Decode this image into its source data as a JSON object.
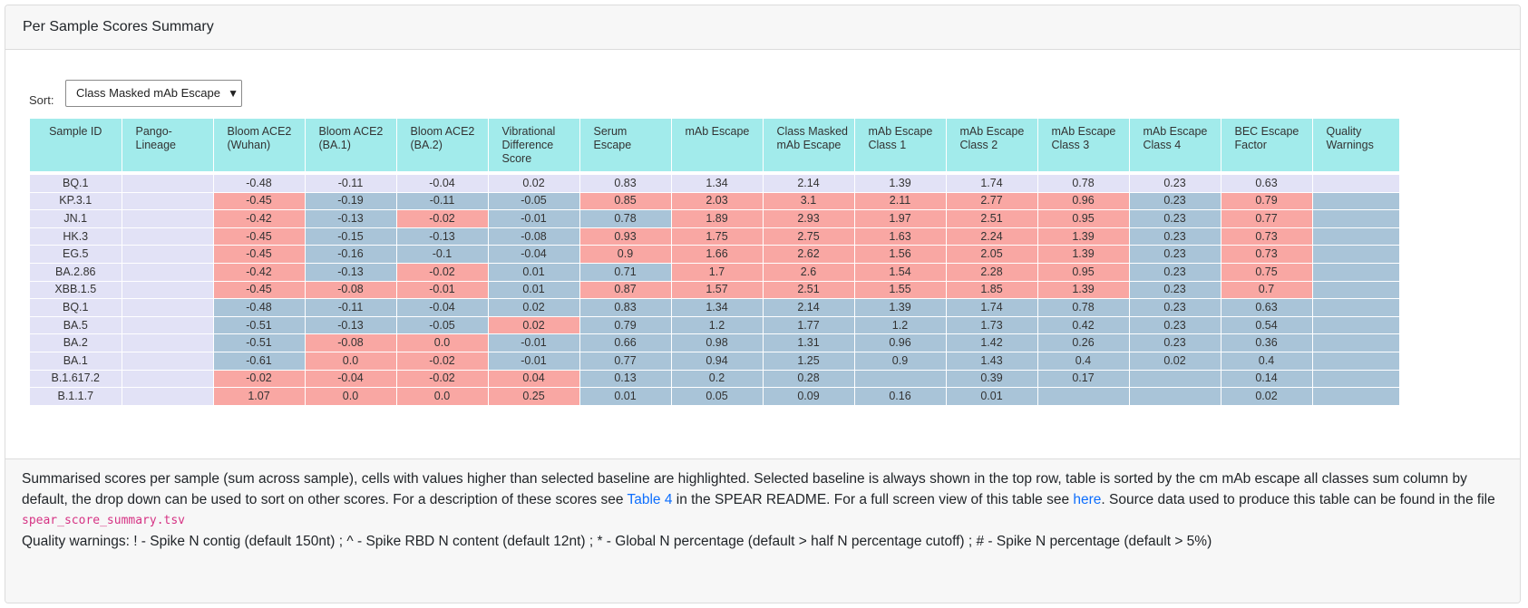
{
  "card": {
    "title": "Per Sample Scores Summary"
  },
  "sort": {
    "label": "Sort:",
    "selected": "Class Masked mAb Escape",
    "arrow": "▼"
  },
  "table": {
    "headers": [
      "Sample ID",
      "Pango-Lineage",
      "Bloom ACE2 (Wuhan)",
      "Bloom ACE2 (BA.1)",
      "Bloom ACE2 (BA.2)",
      "Vibrational Difference Score",
      "Serum Escape",
      "mAb Escape",
      "Class Masked mAb Escape",
      "mAb Escape Class 1",
      "mAb Escape Class 2",
      "mAb Escape Class 3",
      "mAb Escape Class 4",
      "BEC Escape Factor",
      "Quality Warnings"
    ],
    "rows": [
      {
        "id": "BQ.1",
        "lineage": "",
        "values": [
          "-0.48",
          "-0.11",
          "-0.04",
          "0.02",
          "0.83",
          "1.34",
          "2.14",
          "1.39",
          "1.74",
          "0.78",
          "0.23",
          "0.63",
          ""
        ],
        "flags": [
          "b",
          "b",
          "b",
          "b",
          "b",
          "b",
          "b",
          "b",
          "b",
          "b",
          "b",
          "b",
          "b"
        ]
      },
      {
        "id": "KP.3.1",
        "lineage": "",
        "values": [
          "-0.45",
          "-0.19",
          "-0.11",
          "-0.05",
          "0.85",
          "2.03",
          "3.1",
          "2.11",
          "2.77",
          "0.96",
          "0.23",
          "0.79",
          ""
        ],
        "flags": [
          "h",
          "l",
          "l",
          "l",
          "h",
          "h",
          "h",
          "h",
          "h",
          "h",
          "l",
          "h",
          "l"
        ]
      },
      {
        "id": "JN.1",
        "lineage": "",
        "values": [
          "-0.42",
          "-0.13",
          "-0.02",
          "-0.01",
          "0.78",
          "1.89",
          "2.93",
          "1.97",
          "2.51",
          "0.95",
          "0.23",
          "0.77",
          ""
        ],
        "flags": [
          "h",
          "l",
          "h",
          "l",
          "l",
          "h",
          "h",
          "h",
          "h",
          "h",
          "l",
          "h",
          "l"
        ]
      },
      {
        "id": "HK.3",
        "lineage": "",
        "values": [
          "-0.45",
          "-0.15",
          "-0.13",
          "-0.08",
          "0.93",
          "1.75",
          "2.75",
          "1.63",
          "2.24",
          "1.39",
          "0.23",
          "0.73",
          ""
        ],
        "flags": [
          "h",
          "l",
          "l",
          "l",
          "h",
          "h",
          "h",
          "h",
          "h",
          "h",
          "l",
          "h",
          "l"
        ]
      },
      {
        "id": "EG.5",
        "lineage": "",
        "values": [
          "-0.45",
          "-0.16",
          "-0.1",
          "-0.04",
          "0.9",
          "1.66",
          "2.62",
          "1.56",
          "2.05",
          "1.39",
          "0.23",
          "0.73",
          ""
        ],
        "flags": [
          "h",
          "l",
          "l",
          "l",
          "h",
          "h",
          "h",
          "h",
          "h",
          "h",
          "l",
          "h",
          "l"
        ]
      },
      {
        "id": "BA.2.86",
        "lineage": "",
        "values": [
          "-0.42",
          "-0.13",
          "-0.02",
          "0.01",
          "0.71",
          "1.7",
          "2.6",
          "1.54",
          "2.28",
          "0.95",
          "0.23",
          "0.75",
          ""
        ],
        "flags": [
          "h",
          "l",
          "h",
          "l",
          "l",
          "h",
          "h",
          "h",
          "h",
          "h",
          "l",
          "h",
          "l"
        ]
      },
      {
        "id": "XBB.1.5",
        "lineage": "",
        "values": [
          "-0.45",
          "-0.08",
          "-0.01",
          "0.01",
          "0.87",
          "1.57",
          "2.51",
          "1.55",
          "1.85",
          "1.39",
          "0.23",
          "0.7",
          ""
        ],
        "flags": [
          "h",
          "h",
          "h",
          "l",
          "h",
          "h",
          "h",
          "h",
          "h",
          "h",
          "l",
          "h",
          "l"
        ]
      },
      {
        "id": "BQ.1",
        "lineage": "",
        "values": [
          "-0.48",
          "-0.11",
          "-0.04",
          "0.02",
          "0.83",
          "1.34",
          "2.14",
          "1.39",
          "1.74",
          "0.78",
          "0.23",
          "0.63",
          ""
        ],
        "flags": [
          "l",
          "l",
          "l",
          "l",
          "l",
          "l",
          "l",
          "l",
          "l",
          "l",
          "l",
          "l",
          "l"
        ]
      },
      {
        "id": "BA.5",
        "lineage": "",
        "values": [
          "-0.51",
          "-0.13",
          "-0.05",
          "0.02",
          "0.79",
          "1.2",
          "1.77",
          "1.2",
          "1.73",
          "0.42",
          "0.23",
          "0.54",
          ""
        ],
        "flags": [
          "l",
          "l",
          "l",
          "h",
          "l",
          "l",
          "l",
          "l",
          "l",
          "l",
          "l",
          "l",
          "l"
        ]
      },
      {
        "id": "BA.2",
        "lineage": "",
        "values": [
          "-0.51",
          "-0.08",
          "0.0",
          "-0.01",
          "0.66",
          "0.98",
          "1.31",
          "0.96",
          "1.42",
          "0.26",
          "0.23",
          "0.36",
          ""
        ],
        "flags": [
          "l",
          "h",
          "h",
          "l",
          "l",
          "l",
          "l",
          "l",
          "l",
          "l",
          "l",
          "l",
          "l"
        ]
      },
      {
        "id": "BA.1",
        "lineage": "",
        "values": [
          "-0.61",
          "0.0",
          "-0.02",
          "-0.01",
          "0.77",
          "0.94",
          "1.25",
          "0.9",
          "1.43",
          "0.4",
          "0.02",
          "0.4",
          ""
        ],
        "flags": [
          "l",
          "h",
          "h",
          "l",
          "l",
          "l",
          "l",
          "l",
          "l",
          "l",
          "l",
          "l",
          "l"
        ]
      },
      {
        "id": "B.1.617.2",
        "lineage": "",
        "values": [
          "-0.02",
          "-0.04",
          "-0.02",
          "0.04",
          "0.13",
          "0.2",
          "0.28",
          "",
          "0.39",
          "0.17",
          "",
          "0.14",
          ""
        ],
        "flags": [
          "h",
          "h",
          "h",
          "h",
          "l",
          "l",
          "l",
          "l",
          "l",
          "l",
          "l",
          "l",
          "l"
        ]
      },
      {
        "id": "B.1.1.7",
        "lineage": "",
        "values": [
          "1.07",
          "0.0",
          "0.0",
          "0.25",
          "0.01",
          "0.05",
          "0.09",
          "0.16",
          "0.01",
          "",
          "",
          "0.02",
          ""
        ],
        "flags": [
          "h",
          "h",
          "h",
          "h",
          "l",
          "l",
          "l",
          "l",
          "l",
          "l",
          "l",
          "l",
          "l"
        ]
      }
    ]
  },
  "colors": {
    "header": "#a2ebeb",
    "baseline": "#e2e2f6",
    "higher": "#f9a7a3",
    "not_higher": "#a9c4d8"
  },
  "footer": {
    "text1": "Summarised scores per sample (sum across sample), cells with values higher than selected baseline are highlighted. Selected baseline is always shown in the top row, table is sorted by the cm mAb escape all classes sum column by default, the drop down can be used to sort on other scores. For a description of these scores see ",
    "link1": "Table 4",
    "text2": " in the SPEAR README. For a full screen view of this table see ",
    "link2": "here",
    "text3": ". Source data used to produce this table can be found in the file ",
    "filename": "spear_score_summary.tsv",
    "quality": "Quality warnings: ! - Spike N contig (default 150nt) ; ^ - Spike RBD N content (default 12nt) ; * - Global N percentage (default > half N percentage cutoff) ; # - Spike N percentage (default > 5%)"
  }
}
